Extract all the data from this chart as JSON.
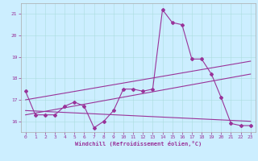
{
  "xlabel": "Windchill (Refroidissement éolien,°C)",
  "background_color": "#cceeff",
  "line_color": "#993399",
  "xlim": [
    -0.5,
    23.5
  ],
  "ylim": [
    15.5,
    21.5
  ],
  "yticks": [
    16,
    17,
    18,
    19,
    20,
    21
  ],
  "xticks": [
    0,
    1,
    2,
    3,
    4,
    5,
    6,
    7,
    8,
    9,
    10,
    11,
    12,
    13,
    14,
    15,
    16,
    17,
    18,
    19,
    20,
    21,
    22,
    23
  ],
  "series1": [
    [
      0,
      17.4
    ],
    [
      1,
      16.3
    ],
    [
      2,
      16.3
    ],
    [
      3,
      16.3
    ],
    [
      4,
      16.7
    ],
    [
      5,
      16.9
    ],
    [
      6,
      16.7
    ],
    [
      7,
      15.7
    ],
    [
      8,
      16.0
    ],
    [
      9,
      16.5
    ],
    [
      10,
      17.5
    ],
    [
      11,
      17.5
    ],
    [
      12,
      17.4
    ],
    [
      13,
      17.5
    ],
    [
      14,
      21.2
    ],
    [
      15,
      20.6
    ],
    [
      16,
      20.5
    ],
    [
      17,
      18.9
    ],
    [
      18,
      18.9
    ],
    [
      19,
      18.2
    ],
    [
      20,
      17.1
    ],
    [
      21,
      15.9
    ],
    [
      22,
      15.8
    ],
    [
      23,
      15.8
    ]
  ],
  "series2_line": [
    [
      0,
      16.3
    ],
    [
      23,
      18.2
    ]
  ],
  "series3_line": [
    [
      0,
      16.5
    ],
    [
      23,
      16.0
    ]
  ],
  "series4_line": [
    [
      0,
      17.0
    ],
    [
      23,
      18.8
    ]
  ]
}
